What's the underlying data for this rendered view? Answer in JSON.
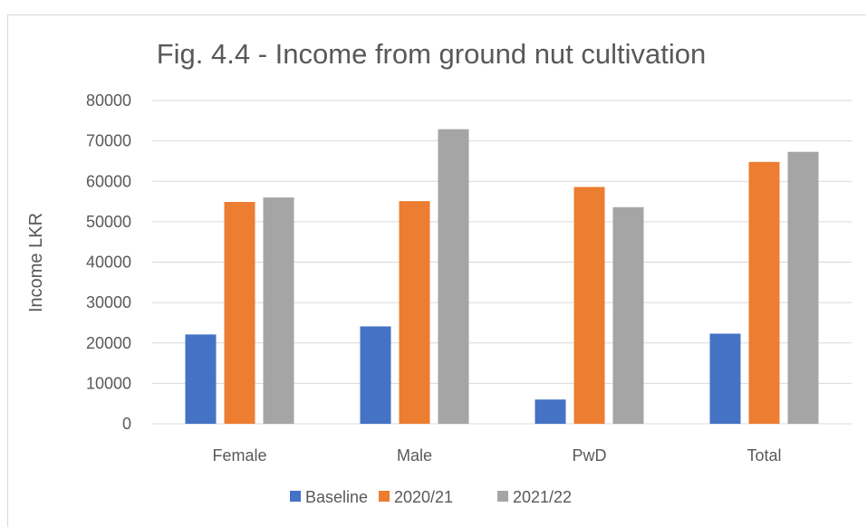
{
  "chart_data": {
    "type": "bar",
    "title": "Fig. 4.4 - Income from ground nut cultivation",
    "xlabel": "",
    "ylabel": "Income LKR",
    "categories": [
      "Female",
      "Male",
      "PwD",
      "Total"
    ],
    "series": [
      {
        "name": "Baseline",
        "color": "#4472C4",
        "values": [
          22100,
          24100,
          6000,
          22300
        ]
      },
      {
        "name": "2020/21",
        "color": "#ED7D31",
        "values": [
          54900,
          55100,
          58600,
          64800
        ]
      },
      {
        "name": "2021/22",
        "color": "#A5A5A5",
        "values": [
          56000,
          72900,
          53600,
          67300
        ]
      }
    ],
    "ylim": [
      0,
      80000
    ],
    "yticks": [
      "0",
      "10000",
      "20000",
      "30000",
      "40000",
      "50000",
      "60000",
      "70000",
      "80000"
    ],
    "grid": true,
    "legend_position": "bottom"
  }
}
